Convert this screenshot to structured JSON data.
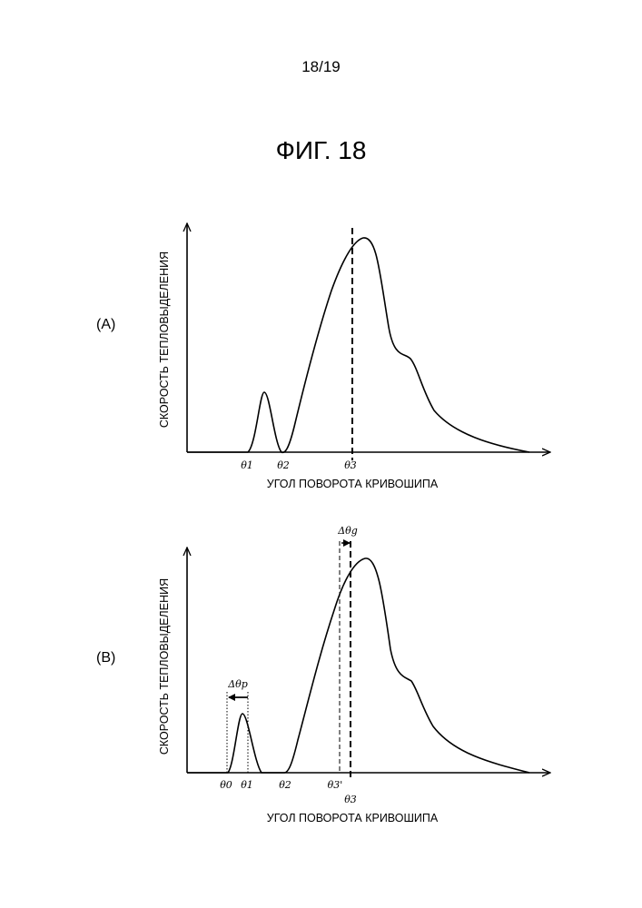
{
  "page_number": "18/19",
  "figure_title": "ФИГ. 18",
  "chart_data": [
    {
      "type": "line",
      "panel_label": "(A)",
      "title": "",
      "xlabel": "УГОЛ ПОВОРОТА КРИВОШИПА",
      "ylabel": "СКОРОСТЬ ТЕПЛОВЫДЕЛЕНИЯ",
      "tick_labels": [
        "θ1",
        "θ2",
        "θ3"
      ],
      "markers": [
        {
          "label": "θ3",
          "style": "dashed"
        }
      ],
      "annotations": [],
      "series": [
        {
          "x": [
            0,
            0.9,
            1.5,
            2.2,
            3.3,
            4.0,
            4.4,
            5.3,
            6.2,
            8.0
          ],
          "y": [
            0,
            0,
            0.28,
            0,
            0.62,
            0.92,
            1.0,
            0.45,
            0.2,
            0
          ]
        }
      ]
    },
    {
      "type": "line",
      "panel_label": "(B)",
      "title": "",
      "xlabel": "УГОЛ ПОВОРОТА КРИВОШИПА",
      "ylabel": "СКОРОСТЬ ТЕПЛОВЫДЕЛЕНИЯ",
      "tick_labels": [
        "θ0",
        "θ1",
        "θ2",
        "θ3'",
        "θ3"
      ],
      "markers": [
        {
          "label": "θ3'",
          "style": "dashed"
        },
        {
          "label": "θ3",
          "style": "dashed"
        }
      ],
      "annotations": [
        "Δθp",
        "Δθg"
      ],
      "series": [
        {
          "x": [
            0,
            0.9,
            1.2,
            1.6,
            2.2,
            3.3,
            3.9,
            4.3,
            5.3,
            6.2,
            8.0
          ],
          "y": [
            0,
            0,
            0.28,
            0,
            0,
            0.62,
            0.92,
            1.0,
            0.45,
            0.2,
            0
          ]
        }
      ]
    }
  ]
}
